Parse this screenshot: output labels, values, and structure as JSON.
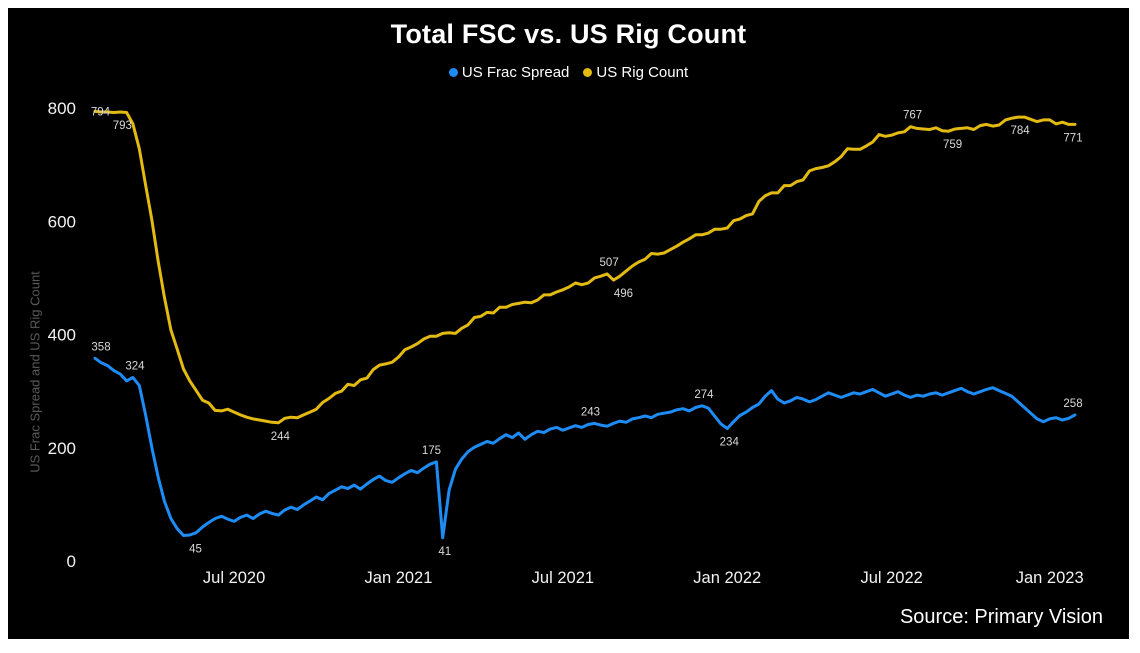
{
  "page": {
    "source": "Source: Primary Vision"
  },
  "chart_data": {
    "type": "line",
    "title": "Total FSC vs. US Rig Count",
    "xlabel": "",
    "ylabel": "US Frac Spread and US Rig Count",
    "ylim": [
      0,
      800
    ],
    "y_ticks": [
      800,
      600,
      400,
      200,
      0
    ],
    "x_tick_labels": [
      "Jul 2020",
      "Jan 2021",
      "Jul 2021",
      "Jan 2022",
      "Jul 2022",
      "Jan 2023"
    ],
    "x_tick_indices": [
      22,
      48,
      74,
      100,
      126,
      151
    ],
    "x_range_note": "weekly points, Feb 2020 through late Jan 2023",
    "grid": false,
    "legend_position": "top-center",
    "background_color": "#000000",
    "label_color": "#d9d9d9",
    "tick_color": "#f2f2f2",
    "series": [
      {
        "name": "US Frac Spread",
        "color": "#1e8cf5",
        "values": [
          358,
          350,
          345,
          336,
          330,
          318,
          324,
          310,
          258,
          200,
          148,
          105,
          75,
          57,
          45,
          46,
          50,
          60,
          68,
          75,
          79,
          74,
          70,
          77,
          81,
          75,
          83,
          88,
          84,
          81,
          90,
          95,
          91,
          99,
          106,
          113,
          108,
          119,
          125,
          131,
          128,
          134,
          127,
          136,
          144,
          150,
          142,
          139,
          147,
          154,
          160,
          156,
          164,
          171,
          175,
          41,
          125,
          162,
          180,
          193,
          201,
          206,
          211,
          208,
          216,
          223,
          218,
          226,
          215,
          223,
          229,
          227,
          233,
          236,
          231,
          235,
          239,
          236,
          241,
          243,
          240,
          238,
          243,
          247,
          245,
          251,
          253,
          256,
          253,
          259,
          261,
          263,
          267,
          269,
          265,
          271,
          274,
          270,
          256,
          242,
          234,
          246,
          257,
          263,
          271,
          277,
          291,
          301,
          286,
          279,
          283,
          289,
          286,
          281,
          285,
          291,
          297,
          293,
          289,
          293,
          297,
          295,
          299,
          303,
          297,
          291,
          295,
          299,
          293,
          289,
          293,
          291,
          295,
          297,
          293,
          297,
          301,
          305,
          299,
          295,
          299,
          303,
          306,
          301,
          296,
          291,
          281,
          271,
          261,
          251,
          246,
          251,
          253,
          249,
          252,
          258
        ]
      },
      {
        "name": "US Rig Count",
        "color": "#e3ba12",
        "values": [
          794,
          793,
          793,
          792,
          793,
          792,
          772,
          728,
          664,
          602,
          529,
          465,
          408,
          374,
          339,
          318,
          301,
          284,
          279,
          266,
          265,
          268,
          263,
          258,
          254,
          251,
          249,
          247,
          245,
          244,
          252,
          254,
          253,
          258,
          263,
          268,
          280,
          287,
          296,
          300,
          312,
          310,
          320,
          323,
          338,
          346,
          348,
          351,
          360,
          373,
          378,
          384,
          392,
          397,
          397,
          402,
          403,
          402,
          411,
          417,
          430,
          432,
          439,
          438,
          448,
          448,
          453,
          455,
          457,
          456,
          461,
          470,
          470,
          475,
          479,
          484,
          491,
          488,
          491,
          500,
          503,
          507,
          496,
          503,
          512,
          521,
          528,
          533,
          543,
          542,
          544,
          550,
          556,
          563,
          569,
          576,
          576,
          579,
          586,
          586,
          588,
          601,
          604,
          610,
          613,
          635,
          645,
          650,
          650,
          663,
          663,
          670,
          673,
          689,
          693,
          695,
          698,
          705,
          714,
          728,
          727,
          727,
          733,
          740,
          753,
          750,
          752,
          756,
          758,
          767,
          764,
          763,
          762,
          765,
          760,
          759,
          763,
          764,
          765,
          762,
          769,
          771,
          768,
          770,
          779,
          782,
          784,
          784,
          780,
          776,
          779,
          779,
          772,
          775,
          771,
          771
        ]
      }
    ],
    "point_labels": [
      {
        "series": 1,
        "index": 0,
        "text": "794",
        "pos": "left",
        "dx": 0
      },
      {
        "series": 1,
        "index": 4,
        "text": "793",
        "pos": "below",
        "dx": 2
      },
      {
        "series": 1,
        "index": 29,
        "text": "244",
        "pos": "below",
        "dx": 2
      },
      {
        "series": 1,
        "index": 81,
        "text": "507",
        "pos": "above",
        "dx": 2
      },
      {
        "series": 1,
        "index": 82,
        "text": "496",
        "pos": "below",
        "dx": 10
      },
      {
        "series": 1,
        "index": 129,
        "text": "767",
        "pos": "above",
        "dx": 2
      },
      {
        "series": 1,
        "index": 135,
        "text": "759",
        "pos": "below",
        "dx": 4
      },
      {
        "series": 1,
        "index": 146,
        "text": "784",
        "pos": "below",
        "dx": 2
      },
      {
        "series": 1,
        "index": 155,
        "text": "771",
        "pos": "below",
        "dx": -2
      },
      {
        "series": 0,
        "index": 0,
        "text": "358",
        "pos": "above",
        "dx": 6
      },
      {
        "series": 0,
        "index": 6,
        "text": "324",
        "pos": "above",
        "dx": 2
      },
      {
        "series": 0,
        "index": 14,
        "text": "45",
        "pos": "below",
        "dx": 12
      },
      {
        "series": 0,
        "index": 54,
        "text": "175",
        "pos": "above",
        "dx": -5
      },
      {
        "series": 0,
        "index": 55,
        "text": "41",
        "pos": "below",
        "dx": 2
      },
      {
        "series": 0,
        "index": 79,
        "text": "243",
        "pos": "above",
        "dx": -4
      },
      {
        "series": 0,
        "index": 96,
        "text": "274",
        "pos": "above",
        "dx": 2
      },
      {
        "series": 0,
        "index": 100,
        "text": "234",
        "pos": "below",
        "dx": 2
      },
      {
        "series": 0,
        "index": 155,
        "text": "258",
        "pos": "above",
        "dx": -2
      }
    ]
  }
}
